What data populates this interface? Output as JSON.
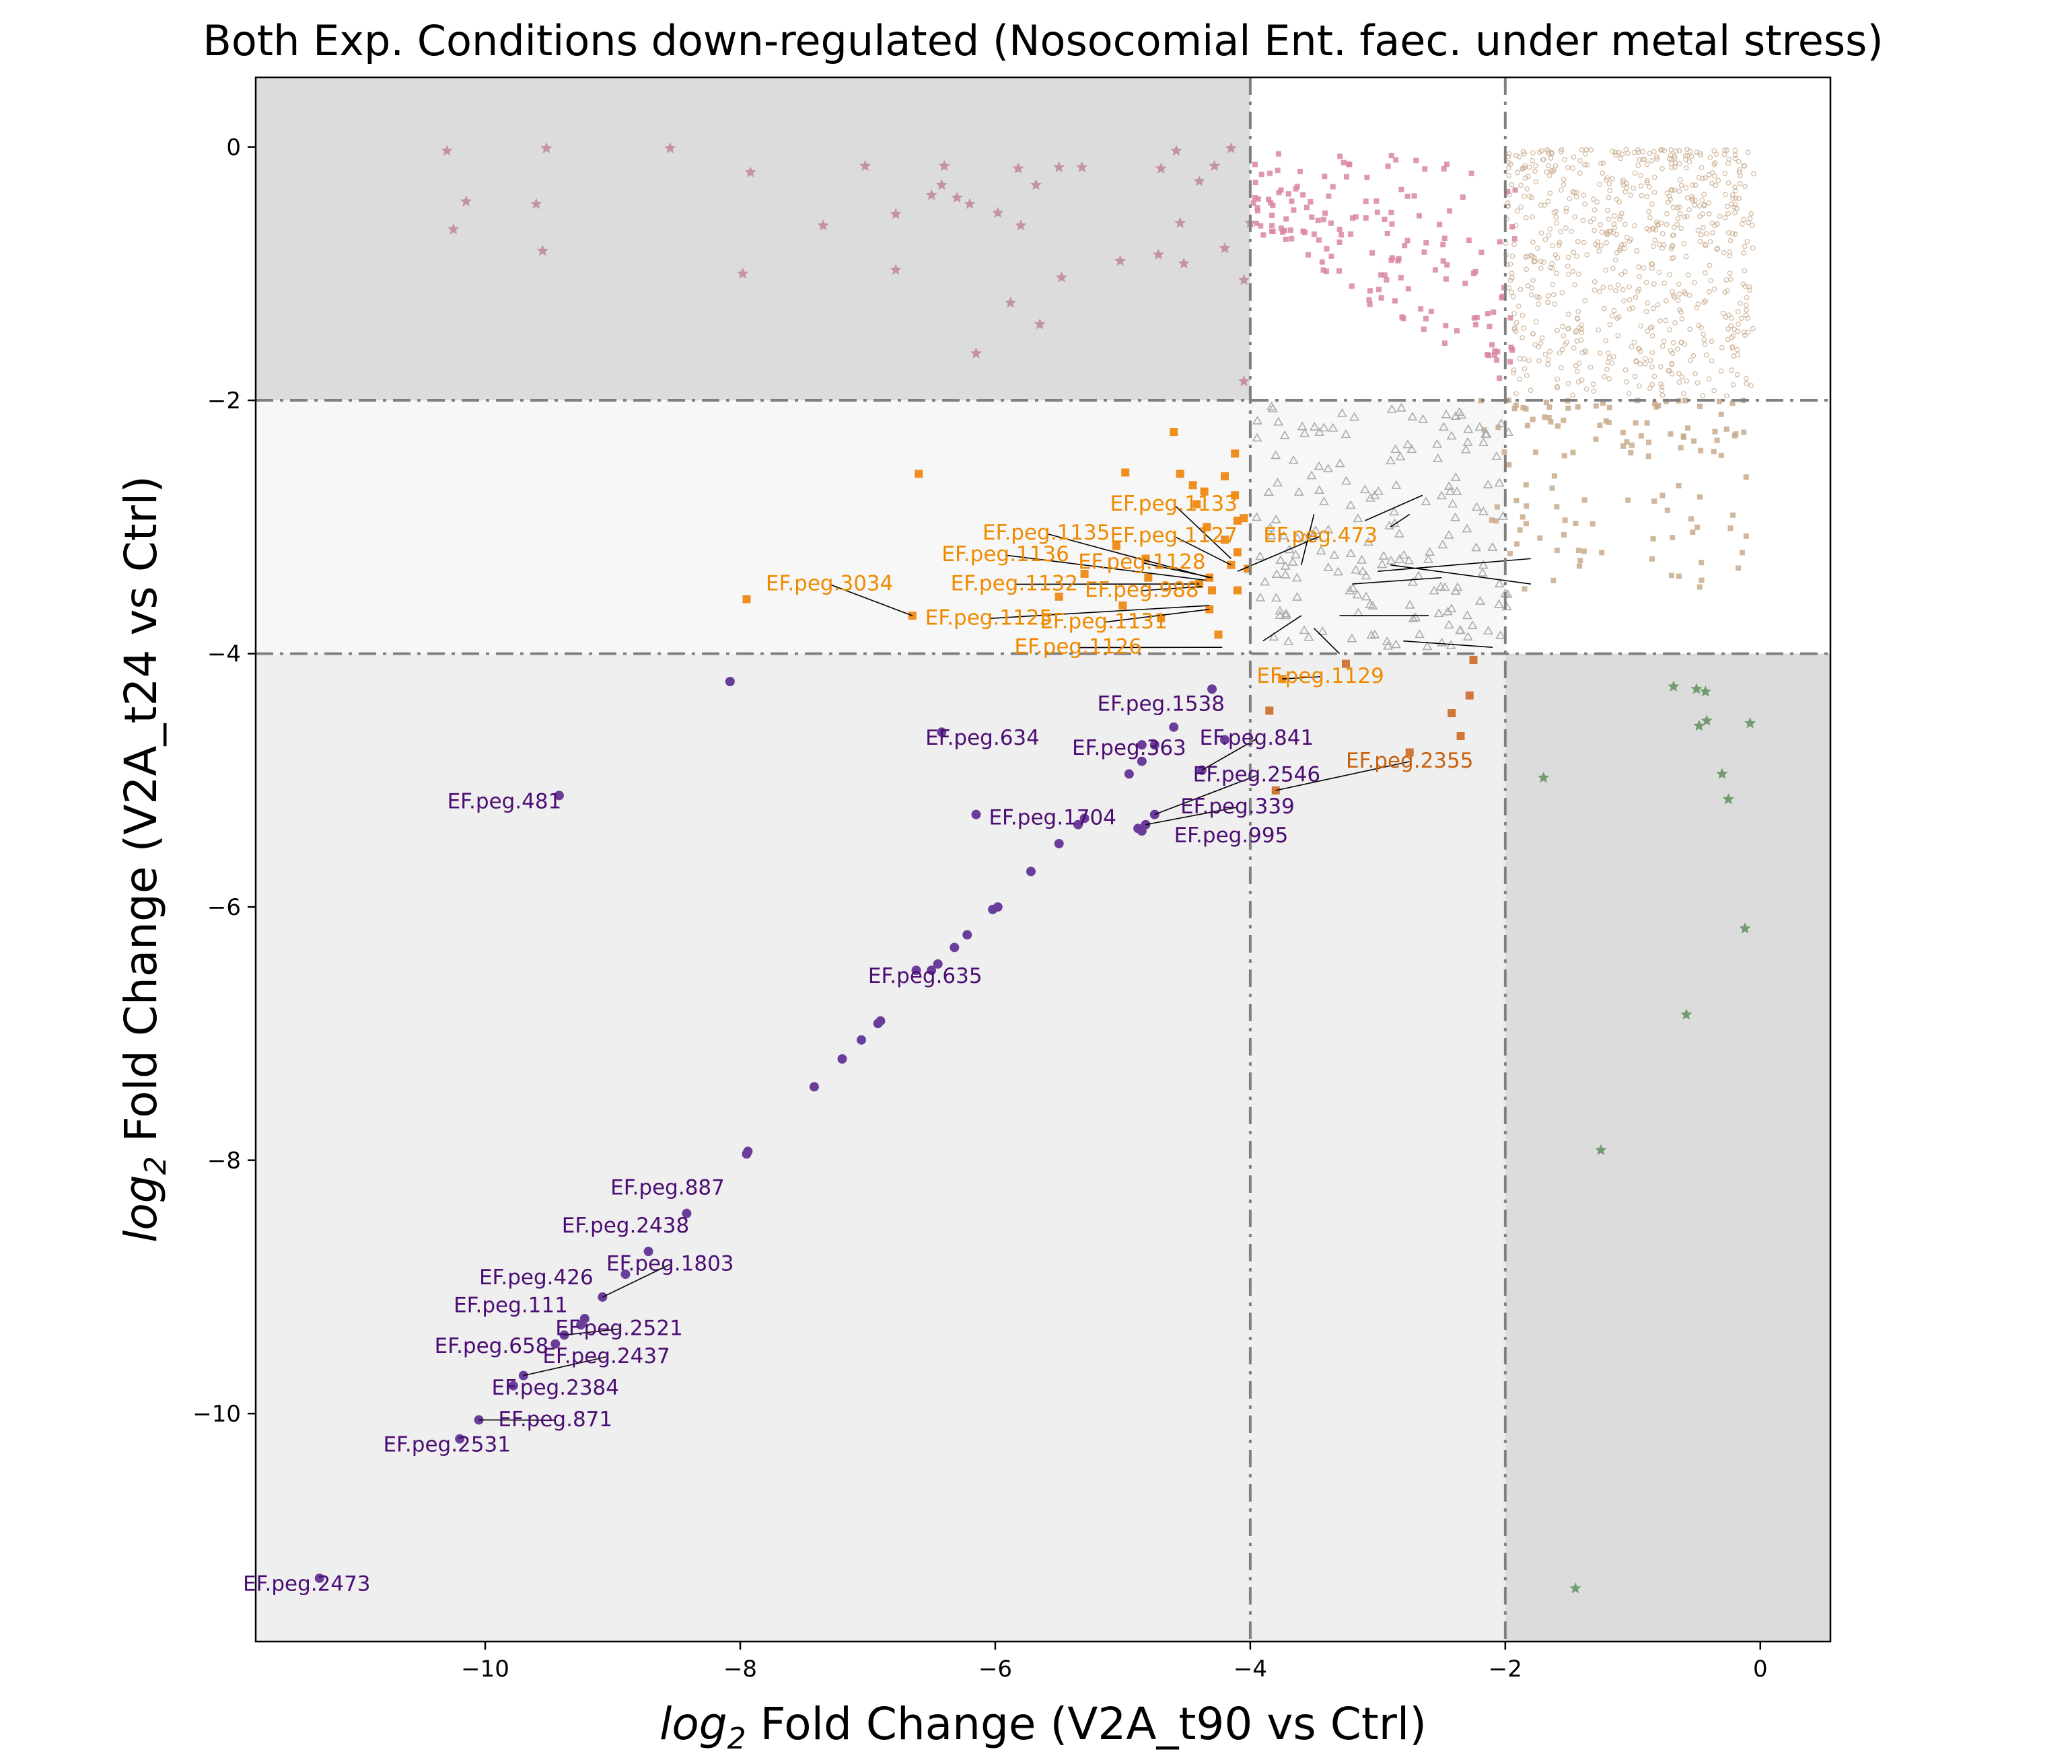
{
  "chart_data": {
    "type": "scatter",
    "title": "Both Exp. Conditions down-regulated (Nosocomial Ent. faec. under metal stress)",
    "xlabel": {
      "prefix": "log",
      "sub": "2",
      "rest": " Fold Change (V2A_t90 vs Ctrl)"
    },
    "ylabel": {
      "prefix": "log",
      "sub": "2",
      "rest": " Fold Change (V2A_t24 vs Ctrl)"
    },
    "xlim": [
      -11.8,
      0.55
    ],
    "ylim": [
      -11.8,
      0.55
    ],
    "xticks": [
      -10,
      -8,
      -6,
      -4,
      -2,
      0
    ],
    "yticks": [
      0,
      -2,
      -4,
      -6,
      -8,
      -10
    ],
    "xtick_labels": [
      "−10",
      "−8",
      "−6",
      "−4",
      "−2",
      "0"
    ],
    "ytick_labels": [
      "0",
      "−2",
      "−4",
      "−6",
      "−8",
      "−10"
    ],
    "grid": false,
    "thresholds": {
      "x": [
        -4,
        -2
      ],
      "y": [
        -4,
        -2
      ]
    },
    "region_colors": {
      "dark": "#dcdcdc",
      "mid": "#efefef",
      "light": "#f7f7f7",
      "threshold_line": "#808080"
    },
    "series_colors": {
      "both_down": "#6a3d9a",
      "t24_moderate": "#ef8f1f",
      "t24_moderate_dark": "#d2763a",
      "t90_only": "#c08696",
      "t90_only_pink": "#d9869e",
      "t24_only": "#5f8f5c",
      "mild_triangles": "#a8aeaa",
      "nonsig": "#c9aa8c",
      "label_purple": "#4b0d72",
      "label_orange": "#ef8a00",
      "label_orange_dark": "#c9600b"
    },
    "labeled_points": [
      {
        "label": "EF.peg.2473",
        "x": -11.3,
        "y": -11.3,
        "tx": -11.4,
        "ty": -11.4,
        "group": "purple"
      },
      {
        "label": "EF.peg.2531",
        "x": -10.2,
        "y": -10.2,
        "tx": -10.3,
        "ty": -10.3,
        "group": "purple"
      },
      {
        "label": "EF.peg.871",
        "x": -10.05,
        "y": -10.05,
        "tx": -9.45,
        "ty": -10.1,
        "group": "purple",
        "leader": true
      },
      {
        "label": "EF.peg.2384",
        "x": -9.78,
        "y": -9.78,
        "tx": -9.45,
        "ty": -9.85,
        "group": "purple"
      },
      {
        "label": "EF.peg.2437",
        "x": -9.7,
        "y": -9.7,
        "tx": -9.05,
        "ty": -9.6,
        "group": "purple",
        "leader": true
      },
      {
        "label": "EF.peg.658",
        "x": -9.45,
        "y": -9.45,
        "tx": -9.95,
        "ty": -9.52,
        "group": "purple"
      },
      {
        "label": "EF.peg.2521",
        "x": -9.38,
        "y": -9.38,
        "tx": -8.95,
        "ty": -9.38,
        "group": "purple",
        "leader": true
      },
      {
        "label": "EF.peg.111",
        "x": -9.25,
        "y": -9.3,
        "tx": -9.8,
        "ty": -9.2,
        "group": "purple"
      },
      {
        "label": "EF.peg.426",
        "x": -9.22,
        "y": -9.25,
        "tx": -9.6,
        "ty": -8.98,
        "group": "purple"
      },
      {
        "label": "EF.peg.1803",
        "x": -9.08,
        "y": -9.08,
        "tx": -8.55,
        "ty": -8.87,
        "group": "purple",
        "leader": true
      },
      {
        "label": "EF.peg.2438",
        "x": -8.72,
        "y": -8.72,
        "tx": -8.9,
        "ty": -8.57,
        "group": "purple"
      },
      {
        "label": "EF.peg.887",
        "x": -8.42,
        "y": -8.42,
        "tx": -8.57,
        "ty": -8.27,
        "group": "purple"
      },
      {
        "label": "EF.peg.635",
        "x": -6.5,
        "y": -6.5,
        "tx": -6.55,
        "ty": -6.6,
        "group": "purple"
      },
      {
        "label": "EF.peg.481",
        "x": -9.42,
        "y": -5.12,
        "tx": -9.85,
        "ty": -5.22,
        "group": "purple"
      },
      {
        "label": "EF.peg.634",
        "x": -6.42,
        "y": -4.62,
        "tx": -6.1,
        "ty": -4.72,
        "group": "purple"
      },
      {
        "label": "EF.peg.1704",
        "x": -6.15,
        "y": -5.27,
        "tx": -5.55,
        "ty": -5.35,
        "group": "purple"
      },
      {
        "label": "EF.peg.363",
        "x": -4.85,
        "y": -4.85,
        "tx": -4.95,
        "ty": -4.8,
        "group": "purple"
      },
      {
        "label": "EF.peg.1538",
        "x": -4.3,
        "y": -4.28,
        "tx": -4.7,
        "ty": -4.45,
        "group": "purple"
      },
      {
        "label": "EF.peg.841",
        "x": -4.38,
        "y": -4.92,
        "tx": -3.95,
        "ty": -4.72,
        "group": "purple",
        "leader": true
      },
      {
        "label": "EF.peg.2546",
        "x": -4.75,
        "y": -5.27,
        "tx": -3.95,
        "ty": -5.01,
        "group": "purple",
        "leader": true
      },
      {
        "label": "EF.peg.339",
        "x": -4.82,
        "y": -5.35,
        "tx": -4.1,
        "ty": -5.26,
        "group": "purple",
        "leader": true
      },
      {
        "label": "EF.peg.995",
        "x": -4.85,
        "y": -5.4,
        "tx": -4.15,
        "ty": -5.49,
        "group": "purple"
      },
      {
        "label": "EF.peg.2355",
        "x": -3.8,
        "y": -5.08,
        "tx": -2.75,
        "ty": -4.9,
        "group": "orange_dark",
        "leader": true
      },
      {
        "label": "EF.peg.1129",
        "x": -3.75,
        "y": -4.2,
        "tx": -3.45,
        "ty": -4.23,
        "group": "orange",
        "leader": true
      },
      {
        "label": "EF.peg.1126",
        "x": -4.22,
        "y": -3.95,
        "tx": -5.35,
        "ty": -4.0,
        "group": "orange",
        "leader": true
      },
      {
        "label": "EF.peg.1131",
        "x": -4.32,
        "y": -3.65,
        "tx": -5.15,
        "ty": -3.8,
        "group": "orange",
        "leader": true
      },
      {
        "label": "EF.peg.1125",
        "x": -4.32,
        "y": -3.62,
        "tx": -6.05,
        "ty": -3.77,
        "group": "orange",
        "leader": true
      },
      {
        "label": "EF.peg.3034",
        "x": -6.65,
        "y": -3.7,
        "tx": -7.3,
        "ty": -3.5,
        "group": "orange",
        "leader": true
      },
      {
        "label": "EF.peg.1132",
        "x": -4.4,
        "y": -3.45,
        "tx": -5.85,
        "ty": -3.5,
        "group": "orange",
        "leader": true
      },
      {
        "label": "EF.peg.988",
        "x": -4.38,
        "y": -3.47,
        "tx": -4.85,
        "ty": -3.55,
        "group": "orange",
        "leader": true
      },
      {
        "label": "EF.peg.1128",
        "x": -4.3,
        "y": -3.4,
        "tx": -4.85,
        "ty": -3.33,
        "group": "orange",
        "leader": true
      },
      {
        "label": "EF.peg.1136",
        "x": -4.35,
        "y": -3.42,
        "tx": -5.92,
        "ty": -3.27,
        "group": "orange",
        "leader": true
      },
      {
        "label": "EF.peg.1135",
        "x": -4.32,
        "y": -3.4,
        "tx": -5.6,
        "ty": -3.1,
        "group": "orange",
        "leader": true
      },
      {
        "label": "EF.peg.1127",
        "x": -4.15,
        "y": -3.3,
        "tx": -4.6,
        "ty": -3.12,
        "group": "orange",
        "leader": true
      },
      {
        "label": "EF.peg.1133",
        "x": -4.15,
        "y": -3.25,
        "tx": -4.6,
        "ty": -2.87,
        "group": "orange",
        "leader": true
      },
      {
        "label": "EF.peg.473",
        "x": -4.1,
        "y": -3.35,
        "tx": -3.45,
        "ty": -3.12,
        "group": "orange",
        "leader": true
      }
    ]
  }
}
